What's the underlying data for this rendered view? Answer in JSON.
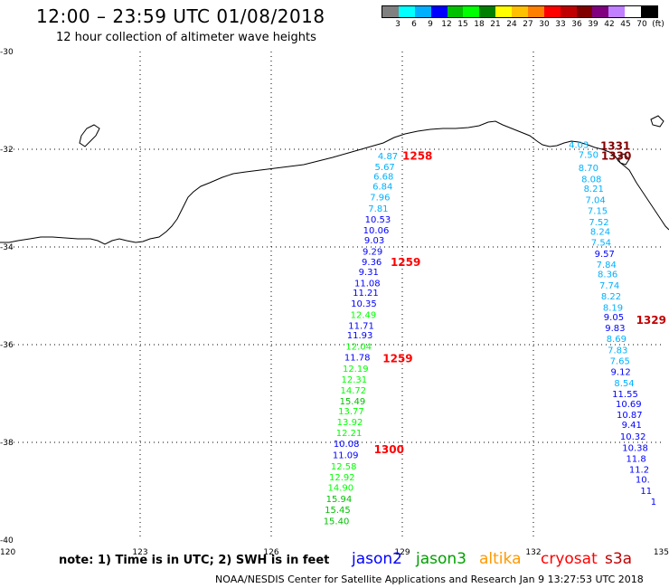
{
  "header": {
    "title": "12:00 – 23:59 UTC 01/08/2018",
    "subtitle": "12 hour collection of altimeter wave heights"
  },
  "colorbar": {
    "colors": [
      "#808080",
      "#00ffff",
      "#00b0ff",
      "#0000ff",
      "#00c000",
      "#00ff00",
      "#008000",
      "#ffff00",
      "#ffc000",
      "#ff8000",
      "#ff0000",
      "#c00000",
      "#800000",
      "#800080",
      "#c080ff",
      "#ffffff",
      "#000000"
    ],
    "labels": [
      "3",
      "6",
      "9",
      "12",
      "15",
      "18",
      "21",
      "24",
      "27",
      "30",
      "33",
      "36",
      "39",
      "42",
      "45",
      "70",
      "(ft)"
    ]
  },
  "axes": {
    "x_labels": [
      "120",
      "123",
      "126",
      "129",
      "132",
      "135"
    ],
    "y_labels": [
      "-30",
      "-32",
      "-34",
      "-36",
      "-38",
      "-40"
    ]
  },
  "footer": {
    "note": "note:  1) Time is in UTC;  2) SWH is in feet",
    "credit": "NOAA/NESDIS Center for Satellite Applications and Research     Jan  9 13:27:53 UTC 2018"
  },
  "legend": [
    {
      "name": "jason2",
      "color": "#0000ff"
    },
    {
      "name": "jason3",
      "color": "#00a000"
    },
    {
      "name": "altika",
      "color": "#ff9900"
    },
    {
      "name": "cryosat",
      "color": "#ff0000"
    },
    {
      "name": "s3a",
      "color": "#c00000"
    }
  ],
  "tracks": [
    {
      "name": "western-track",
      "labels": [
        {
          "value": "4.87",
          "lon": 128.67,
          "lat": -32.13,
          "color": "#00b0ff"
        },
        {
          "value": "5.67",
          "lon": 128.6,
          "lat": -32.35,
          "color": "#00b0ff"
        },
        {
          "value": "6.68",
          "lon": 128.57,
          "lat": -32.55,
          "color": "#00b0ff"
        },
        {
          "value": "6.84",
          "lon": 128.55,
          "lat": -32.75,
          "color": "#00b0ff"
        },
        {
          "value": "7.96",
          "lon": 128.49,
          "lat": -32.97,
          "color": "#00b0ff"
        },
        {
          "value": "7.81",
          "lon": 128.45,
          "lat": -33.2,
          "color": "#00b0ff"
        },
        {
          "value": "10.53",
          "lon": 128.44,
          "lat": -33.43,
          "color": "#0000ff"
        },
        {
          "value": "10.06",
          "lon": 128.4,
          "lat": -33.65,
          "color": "#0000ff"
        },
        {
          "value": "9.03",
          "lon": 128.36,
          "lat": -33.85,
          "color": "#0000ff"
        },
        {
          "value": "9.29",
          "lon": 128.32,
          "lat": -34.08,
          "color": "#0000ff"
        },
        {
          "value": "9.36",
          "lon": 128.3,
          "lat": -34.3,
          "color": "#0000ff"
        },
        {
          "value": "9.31",
          "lon": 128.23,
          "lat": -34.5,
          "color": "#0000ff"
        },
        {
          "value": "11.08",
          "lon": 128.2,
          "lat": -34.73,
          "color": "#0000ff"
        },
        {
          "value": "11.21",
          "lon": 128.16,
          "lat": -34.93,
          "color": "#0000ff"
        },
        {
          "value": "10.35",
          "lon": 128.12,
          "lat": -35.15,
          "color": "#0000ff"
        },
        {
          "value": "12.49",
          "lon": 128.11,
          "lat": -35.38,
          "color": "#00ff00"
        },
        {
          "value": "11.71",
          "lon": 128.06,
          "lat": -35.6,
          "color": "#0000ff"
        },
        {
          "value": "11.93",
          "lon": 128.03,
          "lat": -35.8,
          "color": "#0000ff"
        },
        {
          "value": "12.04",
          "lon": 128.0,
          "lat": -36.03,
          "color": "#00ff00"
        },
        {
          "value": "11.78",
          "lon": 127.97,
          "lat": -36.25,
          "color": "#0000ff"
        },
        {
          "value": "12.19",
          "lon": 127.93,
          "lat": -36.48,
          "color": "#00ff00"
        },
        {
          "value": "12.31",
          "lon": 127.9,
          "lat": -36.7,
          "color": "#00ff00"
        },
        {
          "value": "14.72",
          "lon": 127.88,
          "lat": -36.93,
          "color": "#00ff00"
        },
        {
          "value": "15.49",
          "lon": 127.86,
          "lat": -37.15,
          "color": "#00c000"
        },
        {
          "value": "13.77",
          "lon": 127.83,
          "lat": -37.35,
          "color": "#00ff00"
        },
        {
          "value": "13.92",
          "lon": 127.8,
          "lat": -37.57,
          "color": "#00ff00"
        },
        {
          "value": "12.21",
          "lon": 127.78,
          "lat": -37.8,
          "color": "#00ff00"
        },
        {
          "value": "10.08",
          "lon": 127.72,
          "lat": -38.02,
          "color": "#0000ff"
        },
        {
          "value": "11.09",
          "lon": 127.7,
          "lat": -38.25,
          "color": "#0000ff"
        },
        {
          "value": "12.58",
          "lon": 127.66,
          "lat": -38.48,
          "color": "#00ff00"
        },
        {
          "value": "12.92",
          "lon": 127.62,
          "lat": -38.7,
          "color": "#00ff00"
        },
        {
          "value": "14.90",
          "lon": 127.59,
          "lat": -38.92,
          "color": "#00ff00"
        },
        {
          "value": "15.94",
          "lon": 127.55,
          "lat": -39.15,
          "color": "#00c000"
        },
        {
          "value": "15.45",
          "lon": 127.52,
          "lat": -39.37,
          "color": "#00c000"
        },
        {
          "value": "15.40",
          "lon": 127.49,
          "lat": -39.6,
          "color": "#00c000"
        }
      ],
      "times": [
        {
          "value": "1258",
          "lon": 129.0,
          "lat": -32.12,
          "color": "#ff0000"
        },
        {
          "value": "1259",
          "lon": 128.73,
          "lat": -34.3,
          "color": "#ff0000"
        },
        {
          "value": "1259",
          "lon": 128.55,
          "lat": -36.27,
          "color": "#ff0000"
        },
        {
          "value": "1300",
          "lon": 128.35,
          "lat": -38.13,
          "color": "#ff0000"
        }
      ]
    },
    {
      "name": "eastern-track",
      "labels": [
        {
          "value": "4.03",
          "lon": 133.04,
          "lat": -31.9,
          "color": "#00b0ff"
        },
        {
          "value": "7.50",
          "lon": 133.26,
          "lat": -32.1,
          "color": "#00b0ff"
        },
        {
          "value": "8.70",
          "lon": 133.26,
          "lat": -32.37,
          "color": "#00b0ff"
        },
        {
          "value": "8.08",
          "lon": 133.33,
          "lat": -32.6,
          "color": "#00b0ff"
        },
        {
          "value": "8.21",
          "lon": 133.38,
          "lat": -32.8,
          "color": "#00b0ff"
        },
        {
          "value": "7.04",
          "lon": 133.42,
          "lat": -33.03,
          "color": "#00b0ff"
        },
        {
          "value": "7.15",
          "lon": 133.47,
          "lat": -33.25,
          "color": "#00b0ff"
        },
        {
          "value": "7.52",
          "lon": 133.5,
          "lat": -33.48,
          "color": "#00b0ff"
        },
        {
          "value": "8.24",
          "lon": 133.53,
          "lat": -33.68,
          "color": "#00b0ff"
        },
        {
          "value": "7.54",
          "lon": 133.55,
          "lat": -33.9,
          "color": "#00b0ff"
        },
        {
          "value": "9.57",
          "lon": 133.63,
          "lat": -34.13,
          "color": "#0000ff"
        },
        {
          "value": "7.84",
          "lon": 133.67,
          "lat": -34.35,
          "color": "#00b0ff"
        },
        {
          "value": "8.36",
          "lon": 133.7,
          "lat": -34.55,
          "color": "#00b0ff"
        },
        {
          "value": "7.74",
          "lon": 133.74,
          "lat": -34.78,
          "color": "#00b0ff"
        },
        {
          "value": "8.22",
          "lon": 133.78,
          "lat": -35.0,
          "color": "#00b0ff"
        },
        {
          "value": "8.19",
          "lon": 133.82,
          "lat": -35.23,
          "color": "#00b0ff"
        },
        {
          "value": "9.05",
          "lon": 133.84,
          "lat": -35.43,
          "color": "#0000ff"
        },
        {
          "value": "9.83",
          "lon": 133.87,
          "lat": -35.65,
          "color": "#0000ff"
        },
        {
          "value": "8.69",
          "lon": 133.9,
          "lat": -35.87,
          "color": "#00b0ff"
        },
        {
          "value": "7.83",
          "lon": 133.93,
          "lat": -36.1,
          "color": "#00b0ff"
        },
        {
          "value": "7.65",
          "lon": 133.98,
          "lat": -36.32,
          "color": "#00b0ff"
        },
        {
          "value": "9.12",
          "lon": 134.0,
          "lat": -36.55,
          "color": "#0000ff"
        },
        {
          "value": "8.54",
          "lon": 134.08,
          "lat": -36.78,
          "color": "#00b0ff"
        },
        {
          "value": "11.55",
          "lon": 134.1,
          "lat": -37.0,
          "color": "#0000ff"
        },
        {
          "value": "10.69",
          "lon": 134.18,
          "lat": -37.2,
          "color": "#0000ff"
        },
        {
          "value": "10.87",
          "lon": 134.2,
          "lat": -37.43,
          "color": "#0000ff"
        },
        {
          "value": "9.41",
          "lon": 134.25,
          "lat": -37.63,
          "color": "#0000ff"
        },
        {
          "value": "10.32",
          "lon": 134.28,
          "lat": -37.87,
          "color": "#0000ff"
        },
        {
          "value": "10.38",
          "lon": 134.33,
          "lat": -38.1,
          "color": "#0000ff"
        },
        {
          "value": "11.8",
          "lon": 134.35,
          "lat": -38.32,
          "color": "#0000ff"
        },
        {
          "value": "11.2",
          "lon": 134.42,
          "lat": -38.55,
          "color": "#0000ff"
        },
        {
          "value": "10.",
          "lon": 134.5,
          "lat": -38.75,
          "color": "#0000ff"
        },
        {
          "value": "11",
          "lon": 134.58,
          "lat": -38.98,
          "color": "#0000ff"
        },
        {
          "value": "1",
          "lon": 134.75,
          "lat": -39.2,
          "color": "#0000ff"
        }
      ],
      "times": [
        {
          "value": "1331",
          "lon": 133.53,
          "lat": -31.92,
          "color": "#800000"
        },
        {
          "value": "1330",
          "lon": 133.55,
          "lat": -32.12,
          "color": "#800000"
        },
        {
          "value": "1329",
          "lon": 134.35,
          "lat": -35.48,
          "color": "#c00000"
        }
      ]
    }
  ]
}
